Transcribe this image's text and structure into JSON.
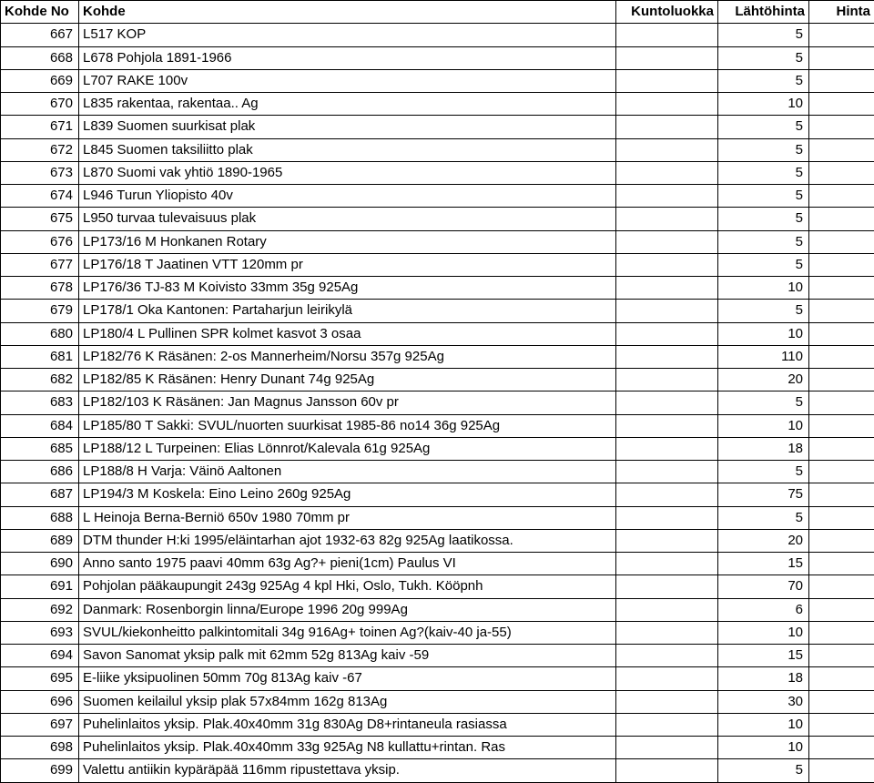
{
  "table": {
    "columns": [
      "Kohde No",
      "Kohde",
      "Kuntoluokka",
      "Lähtöhinta",
      "Hinta"
    ],
    "col_classes": [
      "col-no",
      "col-desc",
      "col-kl",
      "col-lh",
      "col-h"
    ],
    "rows": [
      [
        "667",
        "L517 KOP",
        "",
        "5",
        ""
      ],
      [
        "668",
        "L678 Pohjola 1891-1966",
        "",
        "5",
        ""
      ],
      [
        "669",
        "L707 RAKE 100v",
        "",
        "5",
        ""
      ],
      [
        "670",
        "L835 rakentaa, rakentaa.. Ag",
        "",
        "10",
        ""
      ],
      [
        "671",
        "L839 Suomen suurkisat plak",
        "",
        "5",
        ""
      ],
      [
        "672",
        "L845 Suomen taksiliitto plak",
        "",
        "5",
        ""
      ],
      [
        "673",
        "L870 Suomi vak yhtiö 1890-1965",
        "",
        "5",
        ""
      ],
      [
        "674",
        "L946 Turun Yliopisto 40v",
        "",
        "5",
        ""
      ],
      [
        "675",
        "L950 turvaa tulevaisuus plak",
        "",
        "5",
        ""
      ],
      [
        "676",
        "LP173/16 M Honkanen Rotary",
        "",
        "5",
        ""
      ],
      [
        "677",
        "LP176/18 T Jaatinen VTT 120mm pr",
        "",
        "5",
        ""
      ],
      [
        "678",
        "LP176/36 TJ-83 M Koivisto 33mm 35g 925Ag",
        "",
        "10",
        ""
      ],
      [
        "679",
        "LP178/1 Oka Kantonen: Partaharjun leirikylä",
        "",
        "5",
        ""
      ],
      [
        "680",
        "LP180/4 L Pullinen SPR kolmet kasvot 3 osaa",
        "",
        "10",
        ""
      ],
      [
        "681",
        "LP182/76 K Räsänen: 2-os Mannerheim/Norsu 357g 925Ag",
        "",
        "110",
        ""
      ],
      [
        "682",
        "LP182/85 K Räsänen: Henry Dunant 74g 925Ag",
        "",
        "20",
        ""
      ],
      [
        "683",
        "LP182/103 K Räsänen: Jan Magnus Jansson 60v pr",
        "",
        "5",
        ""
      ],
      [
        "684",
        "LP185/80 T Sakki: SVUL/nuorten suurkisat 1985-86 no14 36g 925Ag",
        "",
        "10",
        ""
      ],
      [
        "685",
        "LP188/12 L Turpeinen: Elias Lönnrot/Kalevala 61g 925Ag",
        "",
        "18",
        ""
      ],
      [
        "686",
        "LP188/8 H Varja: Väinö Aaltonen",
        "",
        "5",
        ""
      ],
      [
        "687",
        "LP194/3 M Koskela: Eino Leino 260g 925Ag",
        "",
        "75",
        ""
      ],
      [
        "688",
        "L Heinoja Berna-Berniö 650v 1980 70mm pr",
        "",
        "5",
        ""
      ],
      [
        "689",
        "DTM thunder H:ki 1995/eläintarhan ajot 1932-63 82g 925Ag laatikossa.",
        "",
        "20",
        ""
      ],
      [
        "690",
        "Anno santo 1975 paavi 40mm 63g Ag?+ pieni(1cm) Paulus VI",
        "",
        "15",
        ""
      ],
      [
        "691",
        "Pohjolan pääkaupungit 243g 925Ag 4 kpl Hki, Oslo, Tukh. Kööpnh",
        "",
        "70",
        ""
      ],
      [
        "692",
        "Danmark: Rosenborgin linna/Europe 1996 20g 999Ag",
        "",
        "6",
        ""
      ],
      [
        "693",
        "SVUL/kiekonheitto palkintomitali 34g 916Ag+ toinen Ag?(kaiv-40 ja-55)",
        "",
        "10",
        ""
      ],
      [
        "694",
        "Savon Sanomat yksip palk mit 62mm 52g 813Ag kaiv -59",
        "",
        "15",
        ""
      ],
      [
        "695",
        "E-liike yksipuolinen 50mm 70g 813Ag kaiv -67",
        "",
        "18",
        ""
      ],
      [
        "696",
        "Suomen keilailul yksip plak 57x84mm 162g 813Ag",
        "",
        "30",
        ""
      ],
      [
        "697",
        "Puhelinlaitos yksip. Plak.40x40mm 31g 830Ag D8+rintaneula rasiassa",
        "",
        "10",
        ""
      ],
      [
        "698",
        "Puhelinlaitos yksip. Plak.40x40mm 33g 925Ag N8 kullattu+rintan. Ras",
        "",
        "10",
        ""
      ],
      [
        "699",
        "Valettu antiikin kypäräpää 116mm ripustettava yksip.",
        "",
        "5",
        ""
      ]
    ]
  }
}
